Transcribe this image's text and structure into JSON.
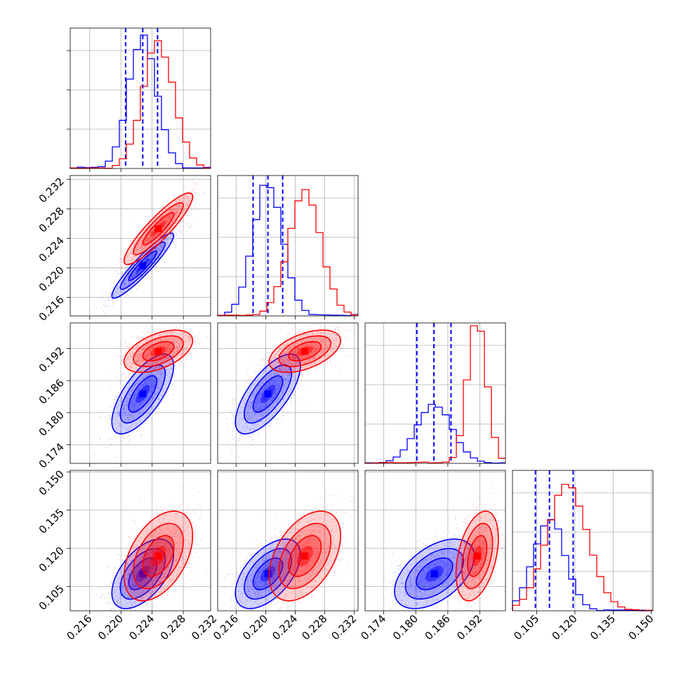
{
  "chart_data": {
    "type": "corner",
    "params": 4,
    "colors": {
      "blue": "#0000ff",
      "red": "#ff0000"
    },
    "grid": true,
    "ranges": [
      [
        0.2135,
        0.2315
      ],
      [
        0.2135,
        0.2325
      ],
      [
        0.1705,
        0.1968
      ],
      [
        0.0955,
        0.1506
      ]
    ],
    "ticks": [
      [
        0.216,
        0.22,
        0.224,
        0.228,
        0.232
      ],
      [
        0.216,
        0.22,
        0.224,
        0.228,
        0.232
      ],
      [
        0.174,
        0.18,
        0.186,
        0.192
      ],
      [
        0.105,
        0.12,
        0.135,
        0.15
      ]
    ],
    "tick_labels": [
      [
        "0.216",
        "0.220",
        "0.224",
        "0.228",
        "0.232"
      ],
      [
        "0.216",
        "0.220",
        "0.224",
        "0.228",
        "0.232"
      ],
      [
        "0.174",
        "0.180",
        "0.186",
        "0.192"
      ],
      [
        "0.105",
        "0.120",
        "0.135",
        "0.150"
      ]
    ],
    "y_ticks": [
      [],
      [
        0.216,
        0.22,
        0.224,
        0.228,
        0.232
      ],
      [
        0.174,
        0.18,
        0.186,
        0.192
      ],
      [
        0.105,
        0.12,
        0.135,
        0.15
      ]
    ],
    "diag_y_ticks": [
      0.28,
      0.56,
      0.84
    ],
    "series": [
      {
        "color": "blue",
        "mean": [
          0.2228,
          0.2203,
          0.1835,
          0.11
        ],
        "sigma": [
          0.0018,
          0.002,
          0.0034,
          0.0062
        ],
        "hist_peak": [
          0.95,
          0.93,
          0.42,
          0.65
        ],
        "quantiles": [
          [
            0.2206,
            0.2228,
            0.2247
          ],
          [
            0.2183,
            0.2203,
            0.2223
          ],
          [
            0.1802,
            0.1834,
            0.1866
          ],
          [
            0.1045,
            0.11,
            0.1193
          ]
        ]
      },
      {
        "color": "red",
        "mean": [
          0.2248,
          0.2253,
          0.1915,
          0.117
        ],
        "sigma": [
          0.002,
          0.0022,
          0.0018,
          0.008
        ],
        "hist_peak": [
          0.91,
          0.9,
          0.98,
          0.9
        ]
      }
    ],
    "correlations": [
      {
        "pair": [
          1,
          0
        ],
        "blue": 0.93,
        "red": 0.9
      },
      {
        "pair": [
          2,
          0
        ],
        "blue": 0.7,
        "red": 0.5
      },
      {
        "pair": [
          2,
          1
        ],
        "blue": 0.7,
        "red": 0.5
      },
      {
        "pair": [
          3,
          0
        ],
        "blue": 0.55,
        "red": 0.45
      },
      {
        "pair": [
          3,
          1
        ],
        "blue": 0.55,
        "red": 0.45
      },
      {
        "pair": [
          3,
          2
        ],
        "blue": 0.5,
        "red": 0.4
      }
    ]
  }
}
